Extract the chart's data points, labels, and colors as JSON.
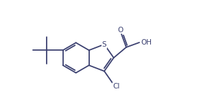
{
  "bg_color": "#ffffff",
  "line_color": "#3b4070",
  "text_color": "#3b4070",
  "line_width": 1.3,
  "font_size": 7.5,
  "figsize": [
    2.93,
    1.59
  ],
  "dpi": 100,
  "xlim": [
    -0.5,
    9.5
  ],
  "ylim": [
    -0.3,
    6.3
  ]
}
